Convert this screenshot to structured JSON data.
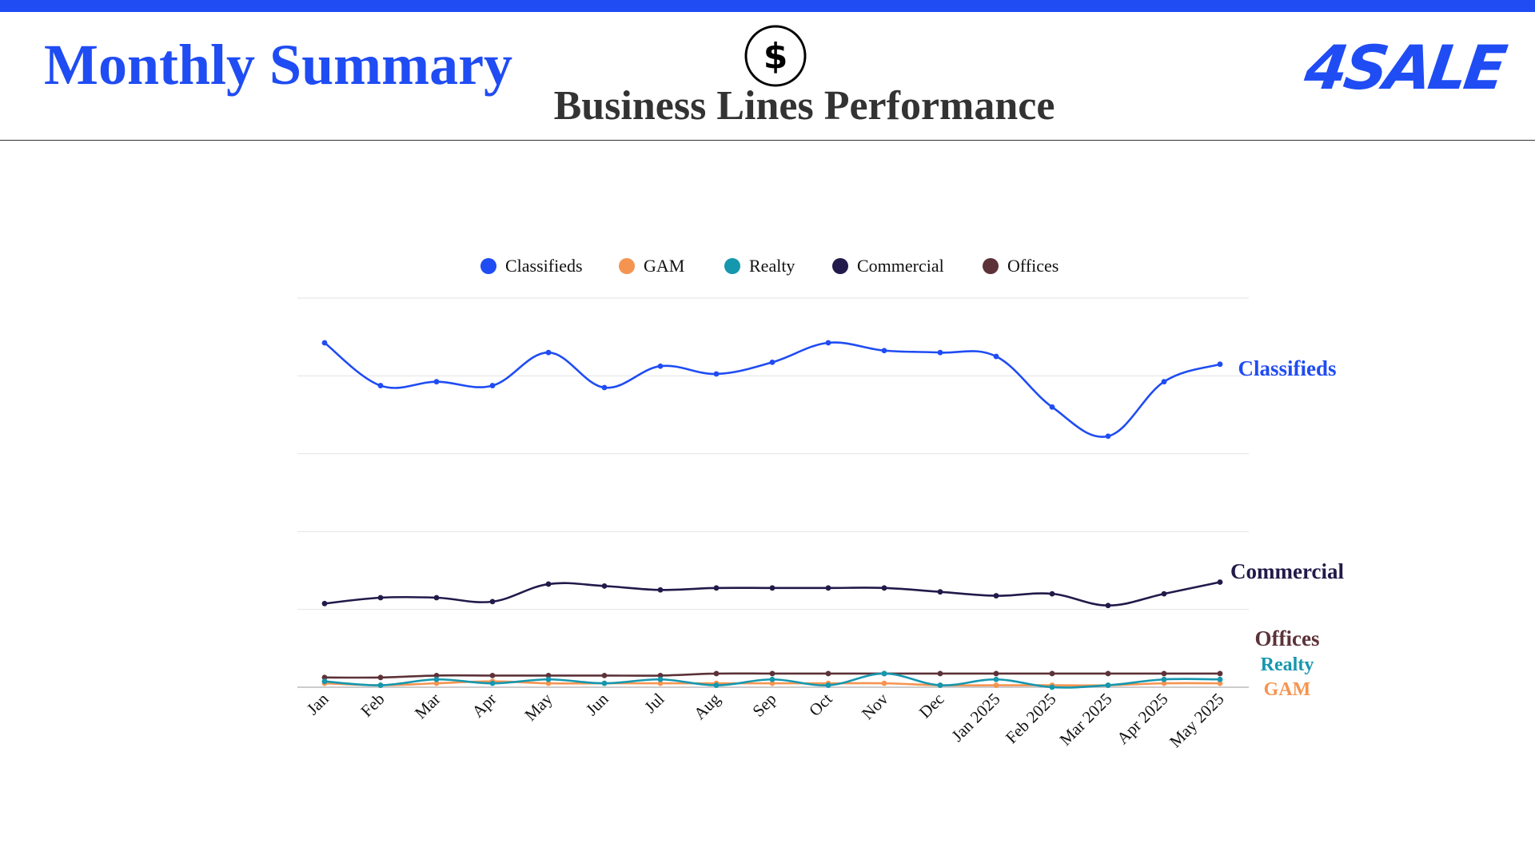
{
  "header": {
    "title": "Monthly Summary",
    "subtitle": "Business Lines Performance",
    "logo_text": "4SALE",
    "icon": "dollar-icon"
  },
  "colors": {
    "brand": "#1f4cf3",
    "title_text": "#333333"
  },
  "chart_data": {
    "type": "line",
    "title": "Business Lines Performance",
    "xlabel": "",
    "ylabel": "",
    "ylim": [
      0,
      200
    ],
    "grid": true,
    "legend": "top-center",
    "categories": [
      "Jan",
      "Feb",
      "Mar",
      "Apr",
      "May",
      "Jun",
      "Jul",
      "Aug",
      "Sep",
      "Oct",
      "Nov",
      "Dec",
      "Jan 2025",
      "Feb 2025",
      "Mar 2025",
      "Apr 2025",
      "May 2025"
    ],
    "series": [
      {
        "name": "Classifieds",
        "color": "#1f4cf3",
        "values": [
          177,
          155,
          157,
          155,
          172,
          154,
          165,
          161,
          167,
          177,
          173,
          172,
          170,
          144,
          129,
          157,
          166
        ]
      },
      {
        "name": "GAM",
        "color": "#f59450",
        "values": [
          2,
          1,
          2,
          3,
          2,
          2,
          2,
          2,
          2,
          2,
          2,
          1,
          1,
          1,
          1,
          2,
          2
        ]
      },
      {
        "name": "Realty",
        "color": "#1597ae",
        "values": [
          3,
          1,
          4,
          2,
          4,
          2,
          4,
          1,
          4,
          1,
          7,
          1,
          4,
          0,
          1,
          4,
          4
        ]
      },
      {
        "name": "Commercial",
        "color": "#211a4a",
        "values": [
          43,
          46,
          46,
          44,
          53,
          52,
          50,
          51,
          51,
          51,
          51,
          49,
          47,
          48,
          42,
          48,
          54
        ]
      },
      {
        "name": "Offices",
        "color": "#5c3238",
        "values": [
          5,
          5,
          6,
          6,
          6,
          6,
          6,
          7,
          7,
          7,
          7,
          7,
          7,
          7,
          7,
          7,
          7
        ]
      }
    ]
  }
}
